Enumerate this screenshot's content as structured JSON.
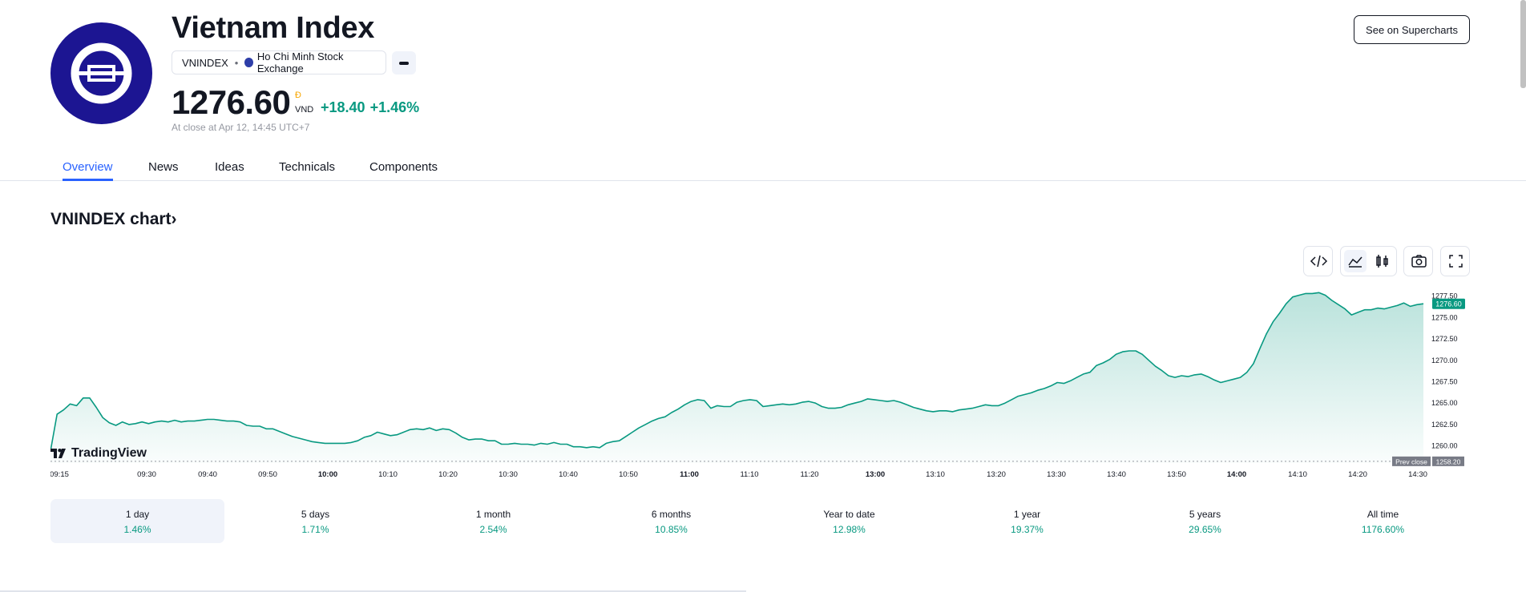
{
  "header": {
    "title": "Vietnam Index",
    "symbol": "VNINDEX",
    "separator": "•",
    "exchange": "Ho Chi Minh Stock Exchange",
    "price": "1276.60",
    "currency_symbol": "Đ",
    "currency": "VND",
    "change_abs": "+18.40",
    "change_pct": "+1.46%",
    "close_note": "At close at Apr 12, 14:45 UTC+7",
    "supercharts_label": "See on Supercharts"
  },
  "tabs": [
    {
      "label": "Overview",
      "active": true
    },
    {
      "label": "News",
      "active": false
    },
    {
      "label": "Ideas",
      "active": false
    },
    {
      "label": "Technicals",
      "active": false
    },
    {
      "label": "Components",
      "active": false
    }
  ],
  "chart_section": {
    "title": "VNINDEX chart",
    "chevron": "›",
    "brand": "TradingView"
  },
  "icons": [
    "embed-icon",
    "area-chart-icon",
    "candles-icon",
    "camera-icon",
    "fullscreen-icon"
  ],
  "colors": {
    "accent": "#2962ff",
    "positive": "#089981",
    "logo_bg": "#1c1592",
    "text": "#131722"
  },
  "chart_data": {
    "type": "area",
    "title": "VNINDEX chart",
    "x_ticks": [
      "09:15",
      "09:30",
      "09:40",
      "09:50",
      "10:00",
      "10:10",
      "10:20",
      "10:30",
      "10:40",
      "10:50",
      "11:00",
      "11:10",
      "11:20",
      "13:00",
      "13:10",
      "13:20",
      "13:30",
      "13:40",
      "13:50",
      "14:00",
      "14:10",
      "14:20",
      "14:30"
    ],
    "bold_ticks": [
      "10:00",
      "11:00",
      "13:00",
      "14:00"
    ],
    "y_ticks": [
      "1277.50",
      "1275.00",
      "1272.50",
      "1270.00",
      "1267.50",
      "1265.00",
      "1262.50",
      "1260.00"
    ],
    "ylim": [
      1258.0,
      1278.4
    ],
    "last_label": "1276.60",
    "prev_close_label": "Prev close",
    "prev_close": "1258.20",
    "series": [
      {
        "name": "VNINDEX",
        "values": [
          1259.4,
          1263.7,
          1264.2,
          1264.9,
          1264.7,
          1265.6,
          1265.6,
          1264.5,
          1263.3,
          1262.7,
          1262.4,
          1262.8,
          1262.5,
          1262.6,
          1262.8,
          1262.6,
          1262.8,
          1262.9,
          1262.8,
          1263.0,
          1262.8,
          1262.9,
          1262.9,
          1263.0,
          1263.1,
          1263.1,
          1263.0,
          1262.9,
          1262.9,
          1262.8,
          1262.4,
          1262.3,
          1262.3,
          1262.0,
          1262.0,
          1261.7,
          1261.4,
          1261.1,
          1260.9,
          1260.7,
          1260.5,
          1260.4,
          1260.3,
          1260.3,
          1260.3,
          1260.3,
          1260.4,
          1260.6,
          1261.0,
          1261.2,
          1261.6,
          1261.4,
          1261.2,
          1261.3,
          1261.6,
          1261.9,
          1262.0,
          1261.9,
          1262.1,
          1261.8,
          1262.0,
          1261.9,
          1261.5,
          1261.0,
          1260.7,
          1260.8,
          1260.8,
          1260.6,
          1260.6,
          1260.2,
          1260.2,
          1260.3,
          1260.2,
          1260.2,
          1260.1,
          1260.3,
          1260.2,
          1260.4,
          1260.2,
          1260.2,
          1259.9,
          1259.9,
          1259.8,
          1259.9,
          1259.8,
          1260.3,
          1260.5,
          1260.6,
          1261.1,
          1261.6,
          1262.1,
          1262.5,
          1262.9,
          1263.2,
          1263.4,
          1263.9,
          1264.3,
          1264.8,
          1265.2,
          1265.4,
          1265.3,
          1264.4,
          1264.7,
          1264.6,
          1264.6,
          1265.1,
          1265.3,
          1265.4,
          1265.3,
          1264.6,
          1264.7,
          1264.8,
          1264.9,
          1264.8,
          1264.9,
          1265.1,
          1265.2,
          1265.0,
          1264.6,
          1264.4,
          1264.4,
          1264.5,
          1264.8,
          1265.0,
          1265.2,
          1265.5,
          1265.4,
          1265.3,
          1265.2,
          1265.3,
          1265.1,
          1264.8,
          1264.5,
          1264.3,
          1264.1,
          1264.0,
          1264.1,
          1264.1,
          1264.0,
          1264.2,
          1264.3,
          1264.4,
          1264.6,
          1264.8,
          1264.7,
          1264.7,
          1265.0,
          1265.4,
          1265.8,
          1266.0,
          1266.2,
          1266.5,
          1266.7,
          1267.0,
          1267.4,
          1267.3,
          1267.6,
          1268.0,
          1268.4,
          1268.6,
          1269.4,
          1269.7,
          1270.1,
          1270.7,
          1271.0,
          1271.1,
          1271.1,
          1270.7,
          1270.0,
          1269.3,
          1268.8,
          1268.2,
          1268.0,
          1268.2,
          1268.1,
          1268.3,
          1268.4,
          1268.1,
          1267.7,
          1267.4,
          1267.6,
          1267.8,
          1268.0,
          1268.6,
          1269.6,
          1271.4,
          1273.1,
          1274.5,
          1275.5,
          1276.6,
          1277.4,
          1277.6,
          1277.8,
          1277.8,
          1277.9,
          1277.6,
          1277.0,
          1276.5,
          1276.0,
          1275.3,
          1275.6,
          1275.9,
          1275.9,
          1276.1,
          1276.0,
          1276.2,
          1276.4,
          1276.7,
          1276.3,
          1276.5,
          1276.6
        ]
      }
    ]
  },
  "periods": [
    {
      "label": "1 day",
      "value": "1.46%",
      "active": true
    },
    {
      "label": "5 days",
      "value": "1.71%",
      "active": false
    },
    {
      "label": "1 month",
      "value": "2.54%",
      "active": false
    },
    {
      "label": "6 months",
      "value": "10.85%",
      "active": false
    },
    {
      "label": "Year to date",
      "value": "12.98%",
      "active": false
    },
    {
      "label": "1 year",
      "value": "19.37%",
      "active": false
    },
    {
      "label": "5 years",
      "value": "29.65%",
      "active": false
    },
    {
      "label": "All time",
      "value": "1176.60%",
      "active": false
    }
  ]
}
